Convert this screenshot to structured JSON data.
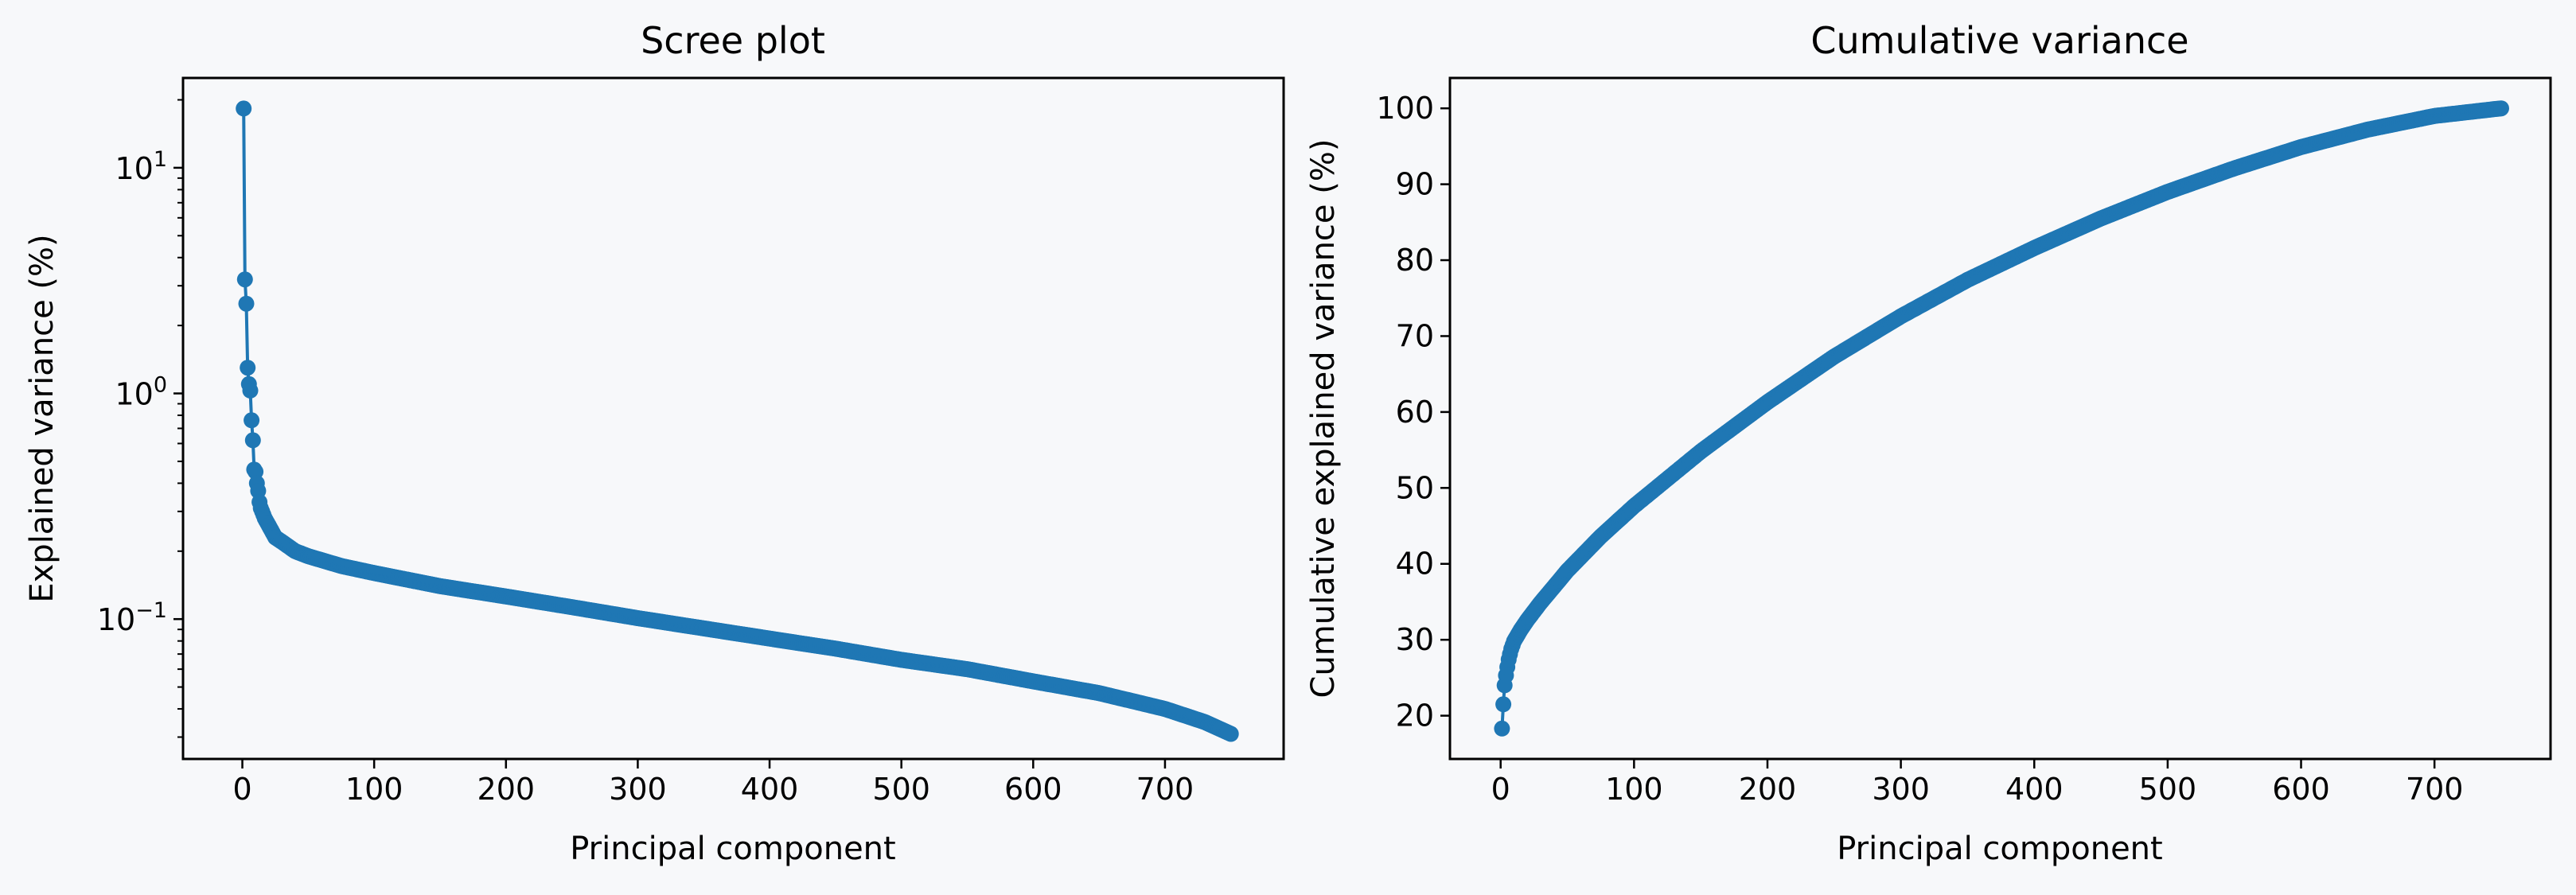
{
  "figure": {
    "background": "#f7f8fa",
    "series_color": "#1f77b4"
  },
  "chart_data": [
    {
      "type": "line",
      "title": "Scree plot",
      "xlabel": "Principal component",
      "ylabel": "Explained variance (%)",
      "yscale": "log",
      "xlim": [
        -45,
        790
      ],
      "ylim": [
        0.024,
        25
      ],
      "xticks": [
        0,
        100,
        200,
        300,
        400,
        500,
        600,
        700
      ],
      "yticks": [
        {
          "value": 0.1,
          "base": "10",
          "exp": "−1"
        },
        {
          "value": 1,
          "base": "10",
          "exp": "0"
        },
        {
          "value": 10,
          "base": "10",
          "exp": "1"
        }
      ],
      "markers": true,
      "grid": false,
      "n_components": 750,
      "points": [
        [
          1,
          18.3
        ],
        [
          2,
          3.2
        ],
        [
          3,
          2.5
        ],
        [
          4,
          1.3
        ],
        [
          5,
          1.1
        ],
        [
          6,
          1.03
        ],
        [
          7,
          0.76
        ],
        [
          8,
          0.62
        ],
        [
          9,
          0.46
        ],
        [
          10,
          0.45
        ],
        [
          11,
          0.4
        ],
        [
          12,
          0.37
        ],
        [
          13,
          0.33
        ],
        [
          14,
          0.31
        ],
        [
          15,
          0.3
        ],
        [
          17,
          0.28
        ],
        [
          20,
          0.26
        ],
        [
          25,
          0.23
        ],
        [
          30,
          0.22
        ],
        [
          40,
          0.2
        ],
        [
          50,
          0.19
        ],
        [
          75,
          0.172
        ],
        [
          100,
          0.16
        ],
        [
          150,
          0.14
        ],
        [
          200,
          0.126
        ],
        [
          250,
          0.113
        ],
        [
          300,
          0.101
        ],
        [
          350,
          0.091
        ],
        [
          400,
          0.082
        ],
        [
          450,
          0.074
        ],
        [
          500,
          0.066
        ],
        [
          550,
          0.06
        ],
        [
          600,
          0.053
        ],
        [
          650,
          0.047
        ],
        [
          700,
          0.04
        ],
        [
          730,
          0.035
        ],
        [
          750,
          0.031
        ]
      ]
    },
    {
      "type": "line",
      "title": "Cumulative variance",
      "xlabel": "Principal component",
      "ylabel": "Cumulative explained variance (%)",
      "xlim": [
        -38,
        787
      ],
      "ylim": [
        14.3,
        104
      ],
      "xticks": [
        0,
        100,
        200,
        300,
        400,
        500,
        600,
        700
      ],
      "yticks": [
        20,
        30,
        40,
        50,
        60,
        70,
        80,
        90,
        100
      ],
      "markers": true,
      "grid": false,
      "n_components": 750,
      "points": [
        [
          1,
          18.3
        ],
        [
          2,
          21.5
        ],
        [
          3,
          24.0
        ],
        [
          4,
          25.3
        ],
        [
          5,
          26.4
        ],
        [
          6,
          27.4
        ],
        [
          8,
          28.8
        ],
        [
          10,
          29.8
        ],
        [
          15,
          31.3
        ],
        [
          20,
          32.6
        ],
        [
          30,
          34.9
        ],
        [
          50,
          39.1
        ],
        [
          75,
          43.6
        ],
        [
          100,
          47.6
        ],
        [
          150,
          54.8
        ],
        [
          200,
          61.3
        ],
        [
          250,
          67.3
        ],
        [
          300,
          72.6
        ],
        [
          350,
          77.4
        ],
        [
          400,
          81.6
        ],
        [
          450,
          85.5
        ],
        [
          500,
          89.0
        ],
        [
          550,
          92.1
        ],
        [
          600,
          94.9
        ],
        [
          650,
          97.2
        ],
        [
          700,
          99.0
        ],
        [
          750,
          100.0
        ]
      ]
    }
  ]
}
